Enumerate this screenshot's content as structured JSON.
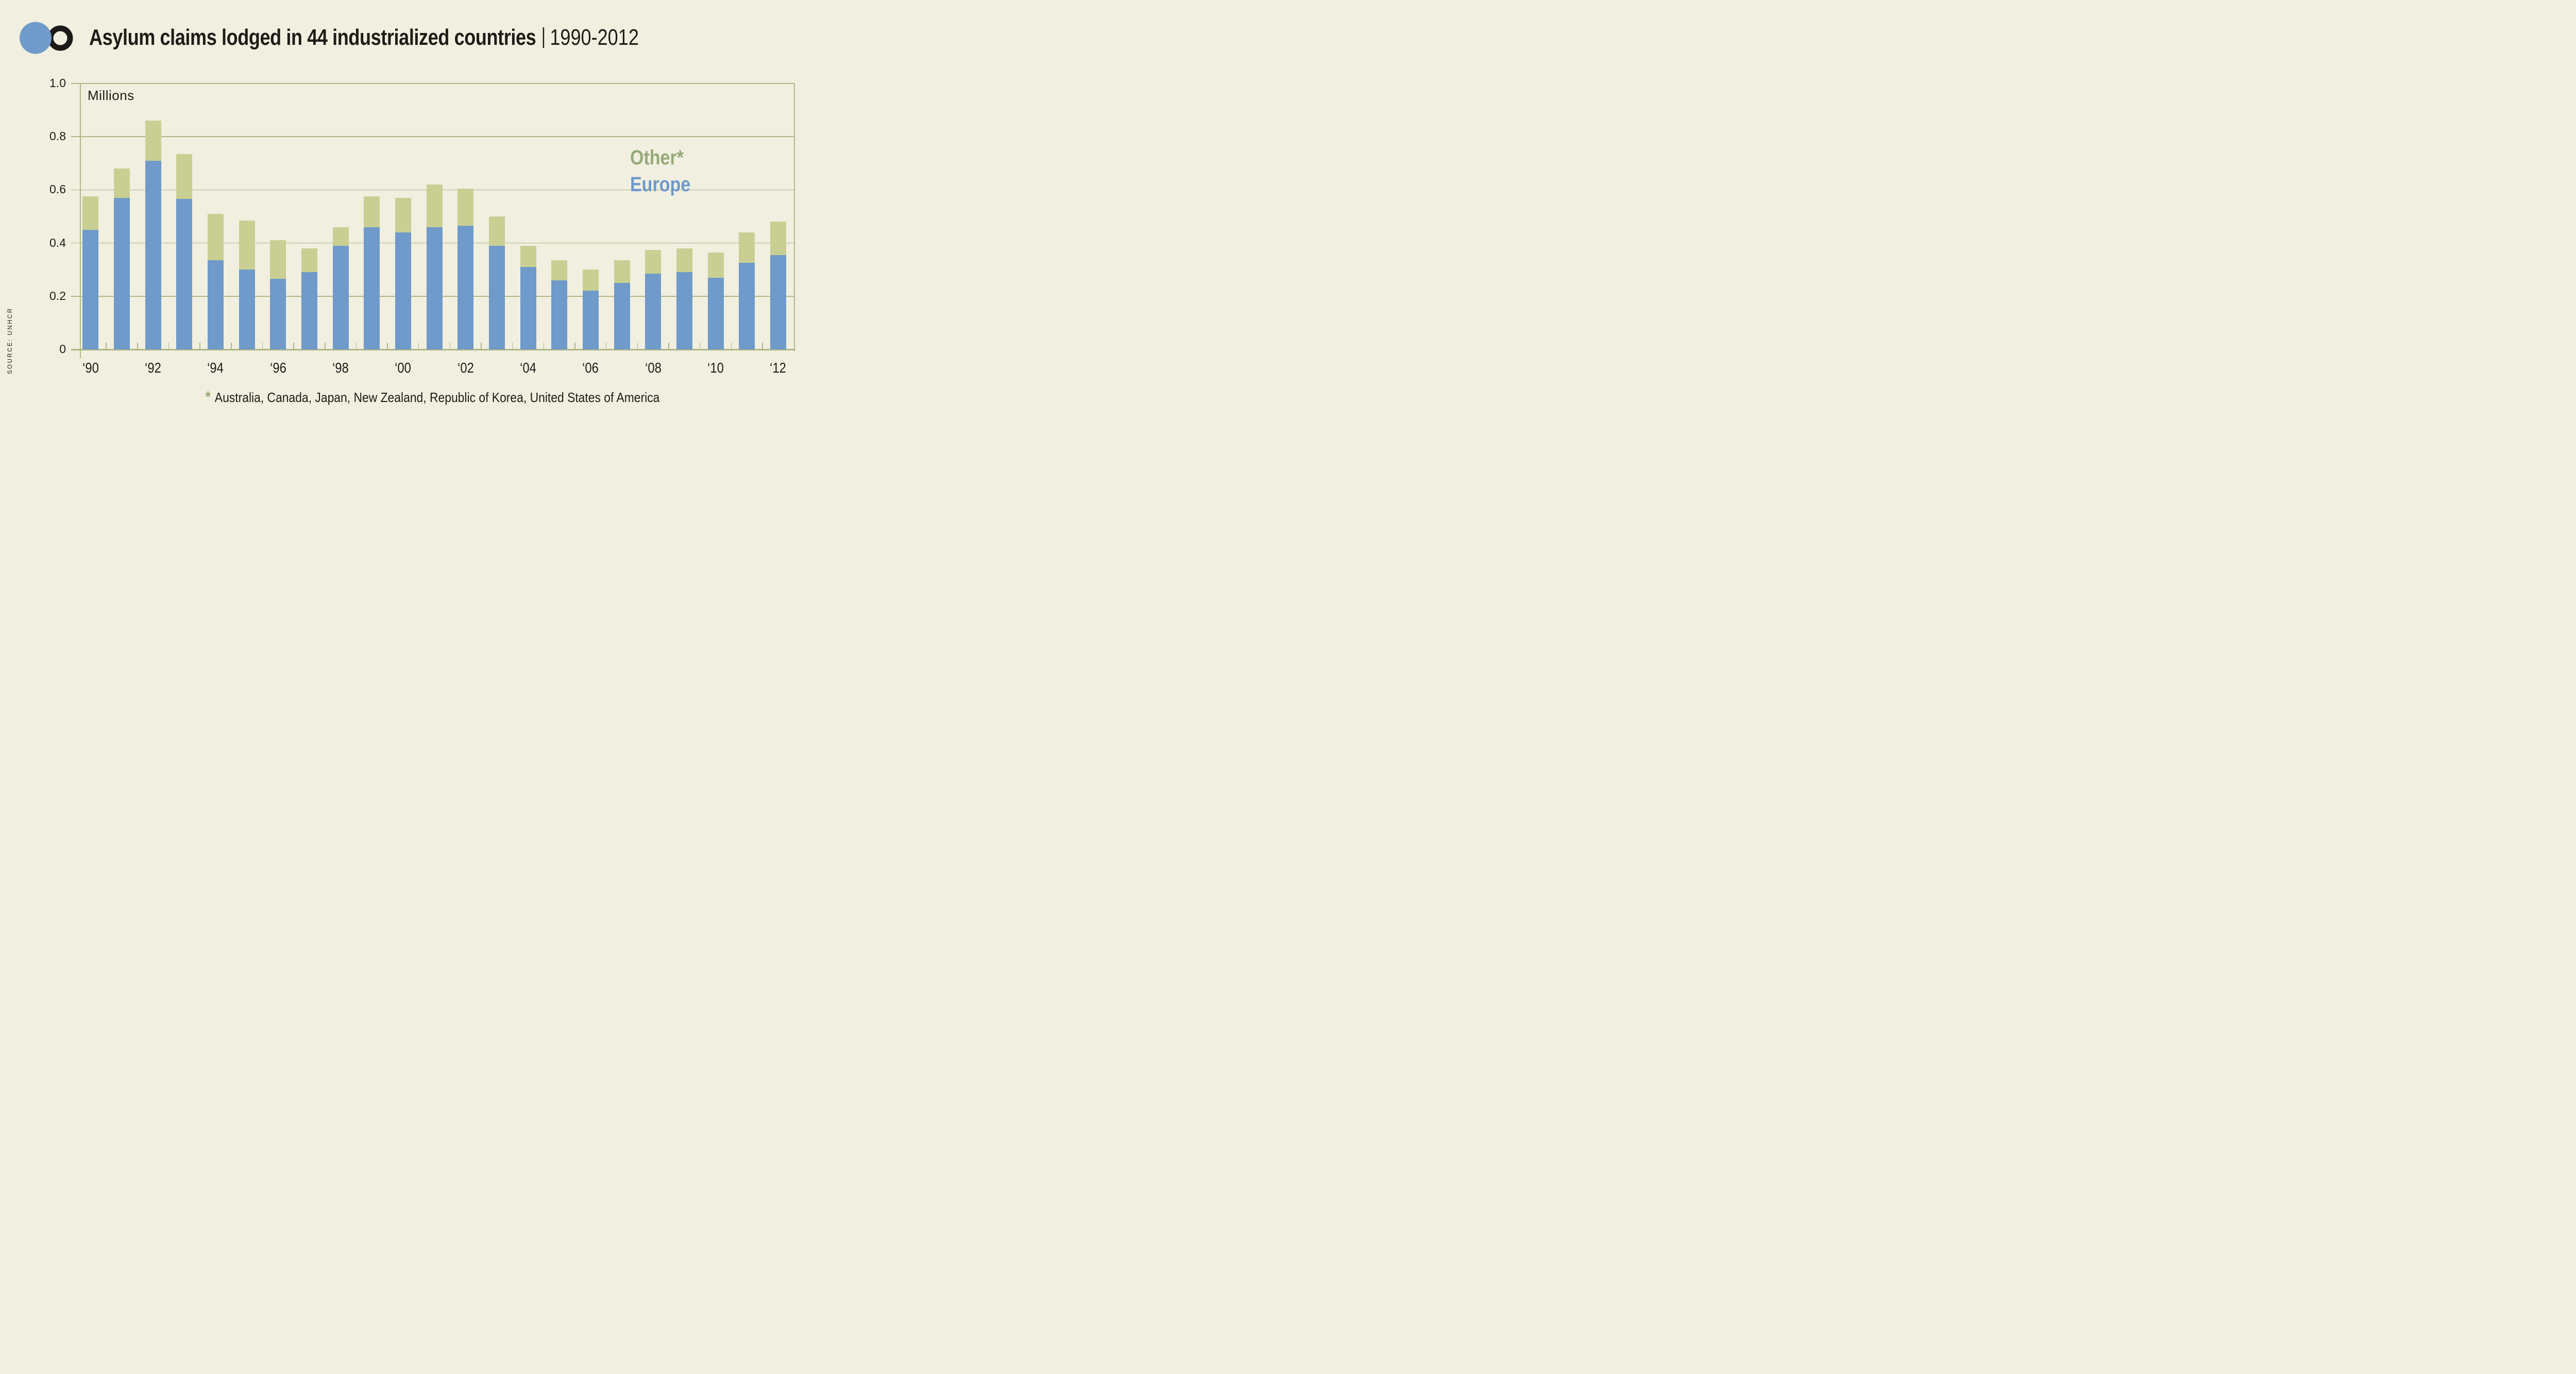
{
  "background_color": "#f1efe0",
  "header": {
    "title": "Asylum claims lodged in 44 industrialized countries",
    "separator": "|",
    "period": "1990-2012",
    "logo": {
      "blue_circle_color": "#6f9ac9",
      "black_ring_color": "#1a1a18"
    }
  },
  "axis": {
    "unit_label": "Millions",
    "y_tick_labels": [
      "1.0",
      "0.8",
      "0.6",
      "0.4",
      "0.2",
      "0"
    ],
    "grid_color": "#adb884",
    "text_color": "#1e1c17"
  },
  "legend": {
    "items": [
      {
        "label": "Other*",
        "color": "#96a979"
      },
      {
        "label": "Europe",
        "color": "#6d99cd"
      }
    ]
  },
  "footnote": {
    "marker": "*",
    "text": "Australia, Canada, Japan, New Zealand, Republic of Korea, United States of America"
  },
  "source_label": "SOURCE: UNHCR",
  "chart_data": {
    "type": "bar",
    "stacked": true,
    "title": "Asylum claims lodged in 44 industrialized countries, 1990-2012",
    "ylabel": "Millions",
    "xlabel": "",
    "ylim": [
      0,
      1.0
    ],
    "yticks": [
      0,
      0.2,
      0.4,
      0.6,
      0.8,
      1.0
    ],
    "grid": true,
    "legend_position": "inside-right",
    "x": [
      1990,
      1991,
      1992,
      1993,
      1994,
      1995,
      1996,
      1997,
      1998,
      1999,
      2000,
      2001,
      2002,
      2003,
      2004,
      2005,
      2006,
      2007,
      2008,
      2009,
      2010,
      2011,
      2012
    ],
    "x_tick_labels": [
      "‘90",
      "‘92",
      "‘94",
      "‘96",
      "‘98",
      "‘00",
      "‘02",
      "‘04",
      "‘06",
      "‘08",
      "‘10",
      "‘12"
    ],
    "series": [
      {
        "name": "Europe",
        "color": "#6f9ac9",
        "values": [
          0.45,
          0.57,
          0.71,
          0.565,
          0.335,
          0.3,
          0.265,
          0.29,
          0.39,
          0.46,
          0.44,
          0.46,
          0.465,
          0.39,
          0.31,
          0.26,
          0.22,
          0.25,
          0.285,
          0.29,
          0.27,
          0.325,
          0.355
        ]
      },
      {
        "name": "Other*",
        "color": "#c9cf93",
        "values": [
          0.125,
          0.11,
          0.15,
          0.17,
          0.175,
          0.185,
          0.145,
          0.09,
          0.07,
          0.115,
          0.13,
          0.16,
          0.14,
          0.11,
          0.08,
          0.075,
          0.08,
          0.085,
          0.09,
          0.09,
          0.095,
          0.115,
          0.125
        ]
      }
    ],
    "totals": [
      0.575,
      0.68,
      0.86,
      0.735,
      0.51,
      0.485,
      0.41,
      0.38,
      0.46,
      0.575,
      0.57,
      0.62,
      0.605,
      0.5,
      0.39,
      0.335,
      0.3,
      0.335,
      0.375,
      0.38,
      0.365,
      0.44,
      0.48
    ]
  }
}
